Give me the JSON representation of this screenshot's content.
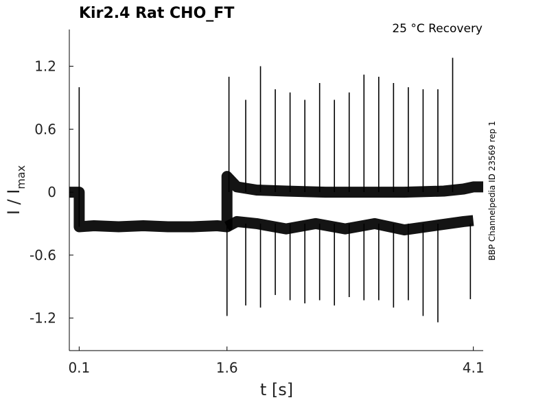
{
  "chart_data": {
    "type": "line",
    "title": "Kir2.4  Rat  CHO_FT",
    "condition": "25 °C  Recovery",
    "side_label": "BBP Channelpedia ID 23569 rep 1",
    "xlabel": "t [s]",
    "ylabel": "I / I",
    "ylabel_sub": "max",
    "xlim": [
      0.0,
      4.2
    ],
    "ylim": [
      -1.51,
      1.55
    ],
    "x_ticks": [
      0.1,
      1.6,
      4.1
    ],
    "x_tick_labels": [
      "0.1",
      "1.6",
      "4.1"
    ],
    "y_ticks": [
      1.2,
      0.6,
      0,
      -0.6,
      -1.2
    ],
    "y_tick_labels": [
      "1.2",
      "0.6",
      "0",
      "-0.6",
      "-1.2"
    ],
    "grid": false,
    "line_color": "#000000",
    "series": [
      {
        "points": [
          [
            0.0,
            0.0
          ],
          [
            0.1,
            0.0
          ],
          [
            0.1,
            -0.33
          ],
          [
            0.25,
            -0.32
          ],
          [
            0.5,
            -0.33
          ],
          [
            0.75,
            -0.32
          ],
          [
            1.0,
            -0.33
          ],
          [
            1.25,
            -0.33
          ],
          [
            1.5,
            -0.32
          ],
          [
            1.6,
            -0.33
          ],
          [
            1.6,
            0.15
          ],
          [
            1.7,
            0.05
          ],
          [
            1.9,
            0.02
          ],
          [
            2.2,
            0.01
          ],
          [
            2.6,
            0.0
          ],
          [
            3.0,
            0.0
          ],
          [
            3.4,
            0.0
          ],
          [
            3.8,
            0.01
          ],
          [
            4.0,
            0.03
          ],
          [
            4.1,
            0.05
          ],
          [
            4.2,
            0.05
          ]
        ]
      },
      {
        "points": [
          [
            1.6,
            -0.33
          ],
          [
            1.7,
            -0.28
          ],
          [
            1.9,
            -0.3
          ],
          [
            2.2,
            -0.35
          ],
          [
            2.5,
            -0.3
          ],
          [
            2.8,
            -0.35
          ],
          [
            3.1,
            -0.3
          ],
          [
            3.4,
            -0.36
          ],
          [
            3.7,
            -0.32
          ],
          [
            4.0,
            -0.28
          ],
          [
            4.1,
            -0.27
          ]
        ]
      }
    ],
    "spikes": [
      {
        "x": 0.1,
        "y": 1.0
      },
      {
        "x": 1.6,
        "y": -1.18
      },
      {
        "x": 1.62,
        "y": 1.1
      },
      {
        "x": 1.79,
        "y": 0.88
      },
      {
        "x": 1.79,
        "y": -1.08
      },
      {
        "x": 1.94,
        "y": 1.2
      },
      {
        "x": 1.94,
        "y": -1.1
      },
      {
        "x": 2.09,
        "y": 0.98
      },
      {
        "x": 2.09,
        "y": -0.98
      },
      {
        "x": 2.24,
        "y": 0.95
      },
      {
        "x": 2.24,
        "y": -1.03
      },
      {
        "x": 2.39,
        "y": 0.88
      },
      {
        "x": 2.39,
        "y": -1.06
      },
      {
        "x": 2.54,
        "y": 1.04
      },
      {
        "x": 2.54,
        "y": -1.03
      },
      {
        "x": 2.69,
        "y": 0.88
      },
      {
        "x": 2.69,
        "y": -1.08
      },
      {
        "x": 2.84,
        "y": 0.95
      },
      {
        "x": 2.84,
        "y": -1.0
      },
      {
        "x": 2.99,
        "y": 1.12
      },
      {
        "x": 2.99,
        "y": -1.03
      },
      {
        "x": 3.14,
        "y": 1.1
      },
      {
        "x": 3.14,
        "y": -1.03
      },
      {
        "x": 3.29,
        "y": 1.04
      },
      {
        "x": 3.29,
        "y": -1.1
      },
      {
        "x": 3.44,
        "y": 1.0
      },
      {
        "x": 3.44,
        "y": -1.03
      },
      {
        "x": 3.59,
        "y": 0.98
      },
      {
        "x": 3.59,
        "y": -1.18
      },
      {
        "x": 3.74,
        "y": 0.98
      },
      {
        "x": 3.74,
        "y": -1.24
      },
      {
        "x": 3.89,
        "y": 1.28
      },
      {
        "x": 4.07,
        "y": -1.02
      }
    ]
  }
}
